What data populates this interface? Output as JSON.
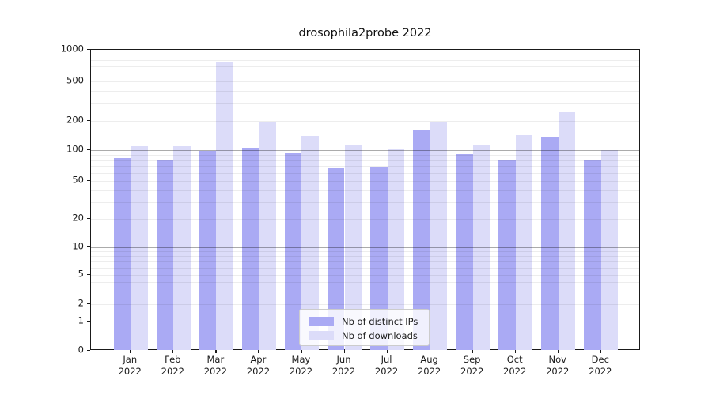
{
  "title": "drosophila2probe 2022",
  "chart_data": {
    "type": "bar",
    "title": "drosophila2probe 2022",
    "categories": [
      "Jan",
      "Feb",
      "Mar",
      "Apr",
      "May",
      "Jun",
      "Jul",
      "Aug",
      "Sep",
      "Oct",
      "Nov",
      "Dec"
    ],
    "year": "2022",
    "series": [
      {
        "name": "Nb of distinct IPs",
        "color": "#aaaaf4",
        "values": [
          84,
          80,
          99,
          106,
          93,
          66,
          68,
          160,
          92,
          80,
          134,
          80
        ]
      },
      {
        "name": "Nb of downloads",
        "color": "#dcdcf9",
        "values": [
          109,
          109,
          760,
          197,
          140,
          113,
          101,
          193,
          115,
          143,
          245,
          100
        ]
      }
    ],
    "yscale": "symlog",
    "ylim": [
      0,
      1000
    ],
    "y_ticks": [
      0,
      1,
      2,
      5,
      10,
      20,
      50,
      100,
      200,
      500,
      1000
    ],
    "y_minor_ticks": [
      3,
      4,
      6,
      7,
      8,
      9,
      30,
      40,
      60,
      70,
      80,
      90,
      300,
      400,
      600,
      700,
      800,
      900
    ],
    "y_major_gridlines": [
      1,
      10,
      100
    ],
    "grid": true,
    "legend_position": "bottom-center"
  }
}
